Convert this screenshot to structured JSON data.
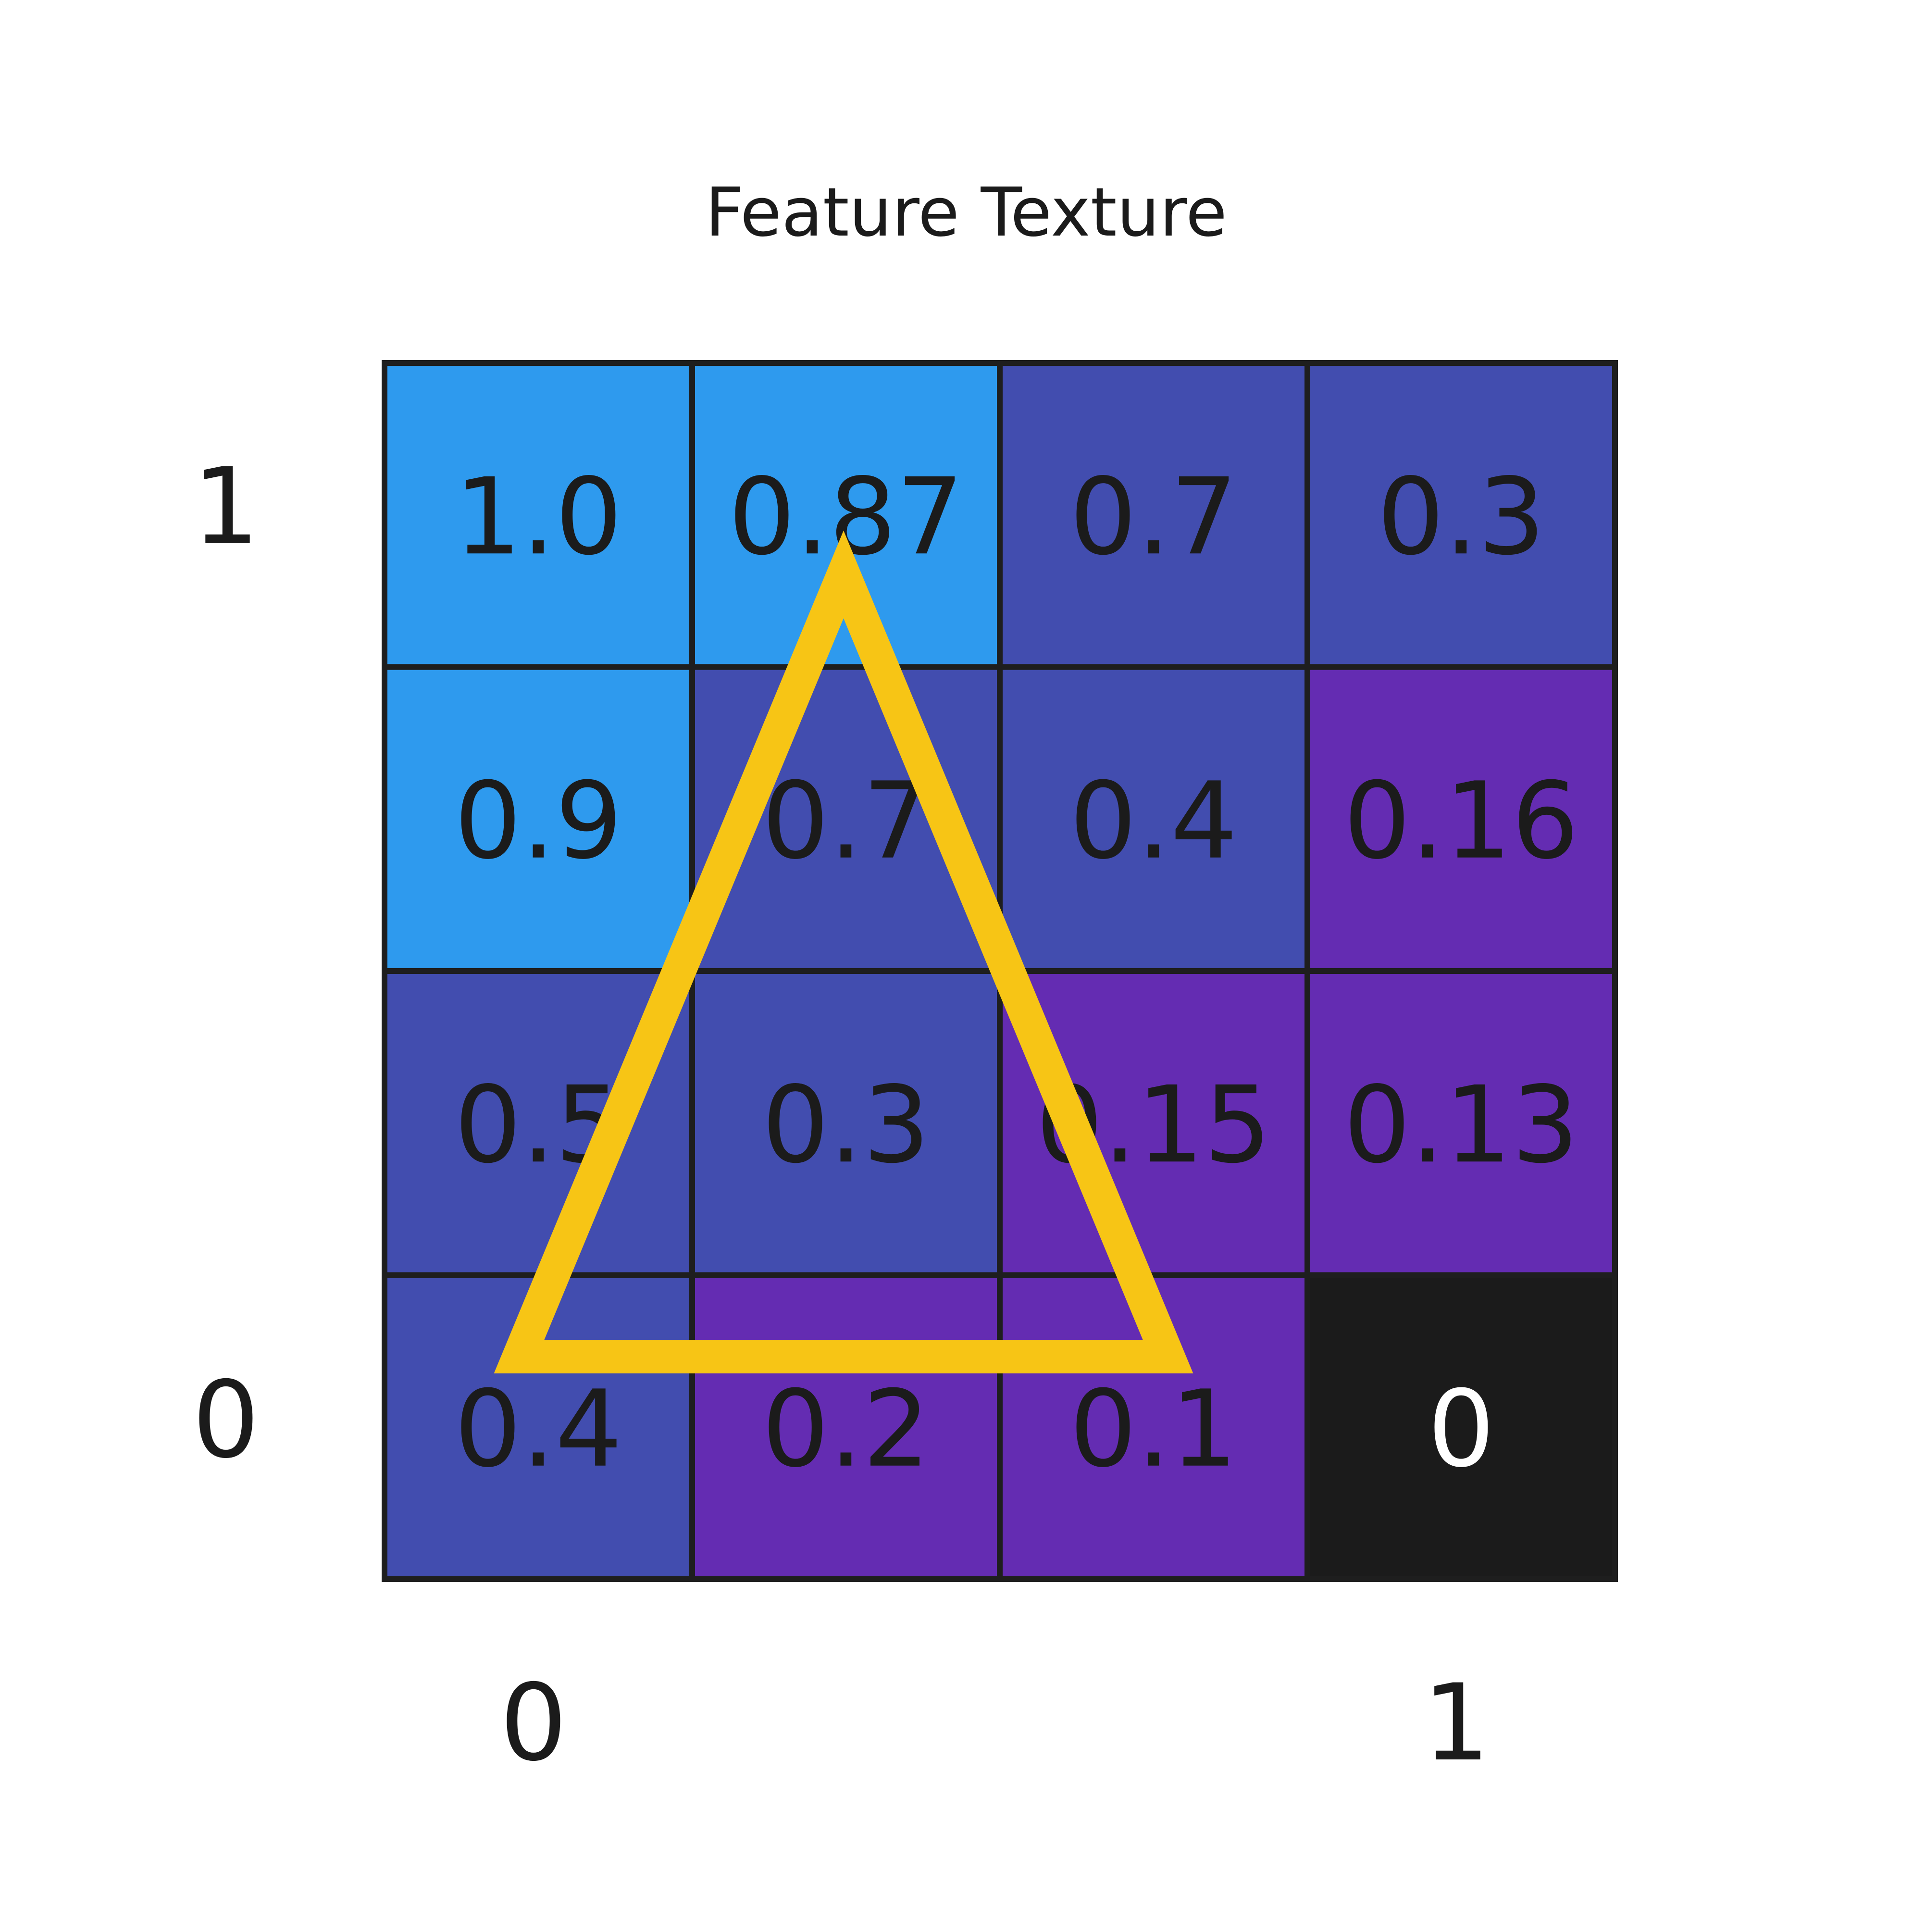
{
  "title": "Feature Texture",
  "axis": {
    "y_top": "1",
    "y_bottom": "0",
    "x_left": "0",
    "x_right": "1"
  },
  "grid": {
    "rows": [
      [
        {
          "label": "1.0",
          "color": "#2e9aee"
        },
        {
          "label": "0.87",
          "color": "#2e9aee"
        },
        {
          "label": "0.7",
          "color": "#424daf"
        },
        {
          "label": "0.3",
          "color": "#424daf"
        }
      ],
      [
        {
          "label": "0.9",
          "color": "#2e9aee"
        },
        {
          "label": "0.7",
          "color": "#424daf"
        },
        {
          "label": "0.4",
          "color": "#424daf"
        },
        {
          "label": "0.16",
          "color": "#642cb2"
        }
      ],
      [
        {
          "label": "0.5",
          "color": "#424daf"
        },
        {
          "label": "0.3",
          "color": "#424daf"
        },
        {
          "label": "0.15",
          "color": "#642cb2"
        },
        {
          "label": "0.13",
          "color": "#642cb2"
        }
      ],
      [
        {
          "label": "0.4",
          "color": "#424daf"
        },
        {
          "label": "0.2",
          "color": "#642cb2"
        },
        {
          "label": "0.1",
          "color": "#642cb2"
        },
        {
          "label": "0",
          "color": "#1b1b1b"
        }
      ]
    ]
  },
  "colors": {
    "border": "#1e1e1e",
    "text_dark": "#1b1b1b",
    "text_light": "#ffffff",
    "triangle": "#f7c515"
  }
}
